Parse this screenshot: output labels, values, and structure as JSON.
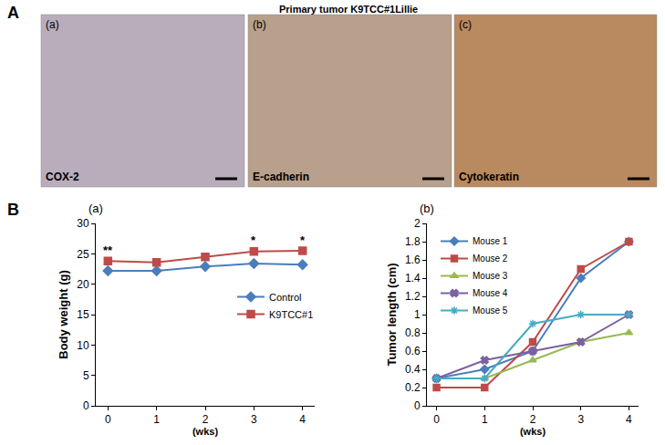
{
  "figure": {
    "panel_labels": [
      "A",
      "B"
    ],
    "title": "Primary tumor K9TCC#1Lillie",
    "images": [
      {
        "label": "(a)",
        "stain": "COX-2"
      },
      {
        "label": "(b)",
        "stain": "E-cadherin"
      },
      {
        "label": "(c)",
        "stain": "Cytokeratin"
      }
    ]
  },
  "chart_data": [
    {
      "type": "line",
      "title": "(a)",
      "x_label": "(wks)",
      "y_label": "Body weight (g)",
      "x": [
        0,
        1,
        2,
        3,
        4
      ],
      "xlim": [
        -0.25,
        4.25
      ],
      "xticks": [
        0,
        1,
        2,
        3,
        4
      ],
      "ylim": [
        0,
        30
      ],
      "yticks": [
        0,
        5,
        10,
        15,
        20,
        25,
        30
      ],
      "grid": false,
      "legend": "right",
      "series": [
        {
          "name": "Control",
          "color": "#4a7ebb",
          "marker": "diamond",
          "line_style": "solid",
          "values": [
            22.2,
            22.2,
            22.9,
            23.4,
            23.2
          ]
        },
        {
          "name": "K9TCC#1",
          "color": "#be4b48",
          "marker": "square",
          "line_style": "solid",
          "values": [
            23.8,
            23.6,
            24.5,
            25.4,
            25.5
          ]
        }
      ],
      "annotations": [
        {
          "x": 0,
          "text": "**"
        },
        {
          "x": 3,
          "text": "*"
        },
        {
          "x": 4,
          "text": "*"
        }
      ]
    },
    {
      "type": "line",
      "title": "(b)",
      "x_label": "(wks)",
      "y_label": "Tumor length (cm)",
      "x": [
        0,
        1,
        2,
        3,
        4
      ],
      "xlim": [
        -0.2,
        4.2
      ],
      "xticks": [
        0,
        1,
        2,
        3,
        4
      ],
      "ylim": [
        0,
        2
      ],
      "yticks": [
        0,
        0.2,
        0.4,
        0.6,
        0.8,
        1,
        1.2,
        1.4,
        1.6,
        1.8,
        2
      ],
      "grid": false,
      "legend": "upper left",
      "series": [
        {
          "name": "Mouse 1",
          "color": "#4a7ebb",
          "marker": "diamond",
          "line_style": "solid",
          "values": [
            0.3,
            0.4,
            0.6,
            1.4,
            1.8
          ]
        },
        {
          "name": "Mouse 2",
          "color": "#be4b48",
          "marker": "square",
          "line_style": "solid",
          "values": [
            0.2,
            0.2,
            0.7,
            1.5,
            1.8
          ]
        },
        {
          "name": "Mouse 3",
          "color": "#98b954",
          "marker": "triangle",
          "line_style": "solid",
          "values": [
            0.3,
            0.3,
            0.5,
            0.7,
            0.8
          ]
        },
        {
          "name": "Mouse 4",
          "color": "#7d60a0",
          "marker": "x",
          "line_style": "solid",
          "values": [
            0.3,
            0.5,
            0.6,
            0.7,
            1.0
          ]
        },
        {
          "name": "Mouse 5",
          "color": "#46aac5",
          "marker": "asterisk",
          "line_style": "solid",
          "values": [
            0.3,
            0.3,
            0.9,
            1.0,
            1.0
          ]
        }
      ]
    }
  ]
}
